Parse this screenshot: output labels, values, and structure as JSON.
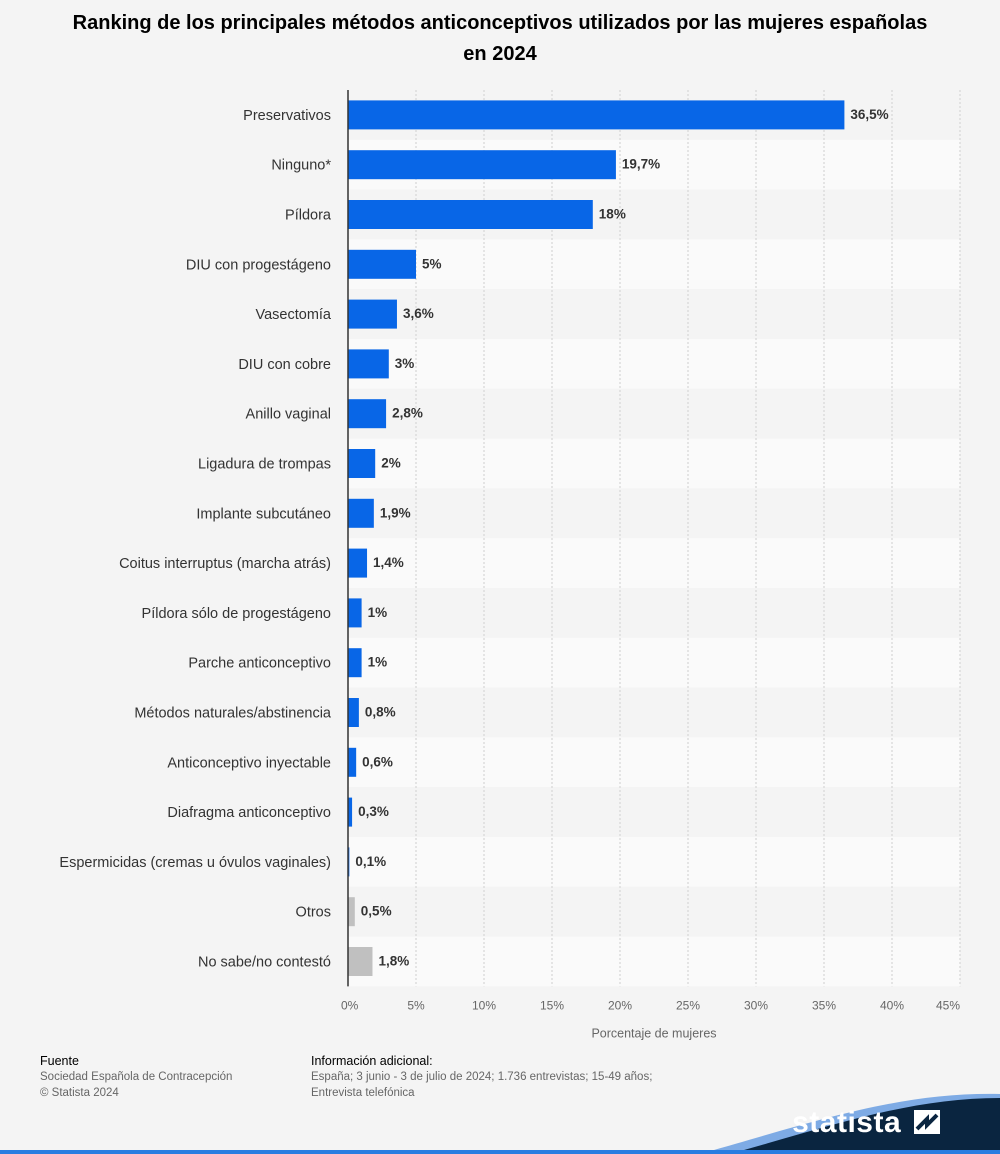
{
  "chart_data": {
    "type": "bar",
    "orientation": "horizontal",
    "title": "Ranking de los principales métodos anticonceptivos utilizados por las mujeres españolas en 2024",
    "xlabel": "Porcentaje de mujeres",
    "ylabel": "",
    "xlim": [
      0,
      45
    ],
    "ticks": [
      "0%",
      "5%",
      "10%",
      "15%",
      "20%",
      "25%",
      "30%",
      "35%",
      "40%",
      "45%"
    ],
    "tick_values": [
      0,
      5,
      10,
      15,
      20,
      25,
      30,
      35,
      40,
      45
    ],
    "grid": true,
    "categories": [
      "Preservativos",
      "Ninguno*",
      "Píldora",
      "DIU con progestágeno",
      "Vasectomía",
      "DIU con cobre",
      "Anillo vaginal",
      "Ligadura de trompas",
      "Implante subcutáneo",
      "Coitus interruptus (marcha atrás)",
      "Píldora sólo de progestágeno",
      "Parche anticonceptivo",
      "Métodos naturales/abstinencia",
      "Anticonceptivo inyectable",
      "Diafragma anticonceptivo",
      "Espermicidas (cremas u óvulos vaginales)",
      "Otros",
      "No sabe/no contestó"
    ],
    "values": [
      36.5,
      19.7,
      18,
      5,
      3.6,
      3,
      2.8,
      2,
      1.9,
      1.4,
      1,
      1,
      0.8,
      0.6,
      0.3,
      0.1,
      0.5,
      1.8
    ],
    "value_labels": [
      "36,5%",
      "19,7%",
      "18%",
      "5%",
      "3,6%",
      "3%",
      "2,8%",
      "2%",
      "1,9%",
      "1,4%",
      "1%",
      "1%",
      "0,8%",
      "0,6%",
      "0,3%",
      "0,1%",
      "0,5%",
      "1,8%"
    ],
    "bar_colors": [
      "#0866e7",
      "#0866e7",
      "#0866e7",
      "#0866e7",
      "#0866e7",
      "#0866e7",
      "#0866e7",
      "#0866e7",
      "#0866e7",
      "#0866e7",
      "#0866e7",
      "#0866e7",
      "#0866e7",
      "#0866e7",
      "#0866e7",
      "#0866e7",
      "#c0c0c0",
      "#c0c0c0"
    ]
  },
  "footer": {
    "source_heading": "Fuente",
    "source_lines": [
      "Sociedad Española de Contracepción",
      "© Statista 2024"
    ],
    "info_heading": "Información adicional:",
    "info_lines": [
      "España; 3 junio - 3 de julio de 2024; 1.736 entrevistas; 15-49 años;",
      "Entrevista telefónica"
    ]
  },
  "brand": {
    "name": "statista"
  },
  "colors": {
    "accent": "#0866e7",
    "other": "#c0c0c0",
    "brand_dark": "#0a2540"
  }
}
